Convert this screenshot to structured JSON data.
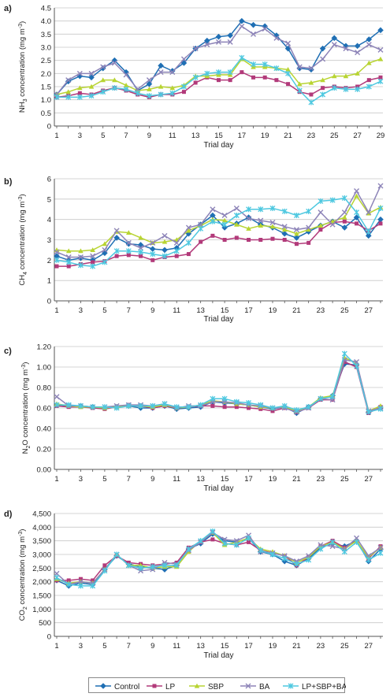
{
  "series_meta": [
    {
      "name": "Control",
      "color": "#1f6fb4",
      "marker": "diamond"
    },
    {
      "name": "LP",
      "color": "#b23a7a",
      "marker": "square"
    },
    {
      "name": "SBP",
      "color": "#b8d432",
      "marker": "triangle"
    },
    {
      "name": "BA",
      "color": "#8d84b8",
      "marker": "x"
    },
    {
      "name": "LP+SBP+BA",
      "color": "#4ec8e0",
      "marker": "star"
    }
  ],
  "chart_data": [
    {
      "panel_label": "a)",
      "type": "line",
      "ylabel_main": "NH",
      "ylabel_sub": "3",
      "ylabel_rest": " concentration (mg m",
      "ylabel_sup": "-3",
      "ylabel_end": ")",
      "xlabel": "Trial day",
      "xlim": [
        1,
        29
      ],
      "xticks": [
        1,
        3,
        5,
        7,
        9,
        11,
        13,
        15,
        17,
        19,
        21,
        23,
        25,
        27,
        29
      ],
      "ylim": [
        0,
        4.5
      ],
      "yticks": [
        "0",
        "0.5",
        "1.0",
        "1.5",
        "2.0",
        "2.5",
        "3.0",
        "3.5",
        "4.0",
        "4.5"
      ],
      "x": [
        1,
        2,
        3,
        4,
        5,
        6,
        7,
        8,
        9,
        10,
        11,
        12,
        13,
        14,
        15,
        16,
        17,
        18,
        19,
        20,
        21,
        22,
        23,
        24,
        25,
        26,
        27,
        28,
        29
      ],
      "series": [
        {
          "name": "Control",
          "values": [
            1.2,
            1.7,
            1.9,
            1.85,
            2.2,
            2.5,
            2.05,
            1.35,
            1.6,
            2.3,
            2.1,
            2.4,
            2.95,
            3.25,
            3.4,
            3.45,
            4.0,
            3.85,
            3.8,
            3.45,
            2.95,
            2.2,
            2.15,
            2.95,
            3.35,
            3.05,
            3.05,
            3.3,
            3.65
          ]
        },
        {
          "name": "LP",
          "values": [
            1.1,
            1.15,
            1.25,
            1.2,
            1.35,
            1.45,
            1.35,
            1.2,
            1.1,
            1.2,
            1.2,
            1.3,
            1.65,
            1.85,
            1.75,
            1.75,
            2.05,
            1.85,
            1.85,
            1.75,
            1.6,
            1.3,
            1.2,
            1.45,
            1.5,
            1.45,
            1.5,
            1.75,
            1.85
          ]
        },
        {
          "name": "SBP",
          "values": [
            1.2,
            1.3,
            1.45,
            1.5,
            1.75,
            1.75,
            1.55,
            1.35,
            1.4,
            1.5,
            1.45,
            1.55,
            1.9,
            1.9,
            1.95,
            1.95,
            2.55,
            2.25,
            2.25,
            2.2,
            2.15,
            1.6,
            1.65,
            1.75,
            1.9,
            1.9,
            2.0,
            2.4,
            2.55
          ]
        },
        {
          "name": "BA",
          "values": [
            1.2,
            1.75,
            2.0,
            2.0,
            2.25,
            2.4,
            1.95,
            1.4,
            1.75,
            2.05,
            2.05,
            2.55,
            2.95,
            3.1,
            3.2,
            3.2,
            3.8,
            3.5,
            3.7,
            3.35,
            3.15,
            2.25,
            2.2,
            2.55,
            3.1,
            2.95,
            2.8,
            3.1,
            2.9
          ]
        },
        {
          "name": "LP+SBP+BA",
          "values": [
            1.1,
            1.1,
            1.1,
            1.15,
            1.3,
            1.45,
            1.4,
            1.25,
            1.15,
            1.2,
            1.25,
            1.5,
            1.85,
            2.0,
            2.05,
            2.05,
            2.6,
            2.35,
            2.35,
            2.2,
            2.0,
            1.35,
            0.9,
            1.2,
            1.45,
            1.4,
            1.4,
            1.5,
            1.7
          ]
        }
      ]
    },
    {
      "panel_label": "b)",
      "type": "line",
      "ylabel_main": "CH",
      "ylabel_sub": "4",
      "ylabel_rest": " concentration (mg m",
      "ylabel_sup": "-3",
      "ylabel_end": ")",
      "xlabel": "Trial day",
      "xlim": [
        1,
        28
      ],
      "xticks": [
        1,
        3,
        5,
        7,
        9,
        11,
        13,
        15,
        17,
        19,
        21,
        23,
        25,
        27
      ],
      "ylim": [
        0,
        6
      ],
      "yticks": [
        "0",
        "1",
        "2",
        "3",
        "4",
        "5",
        "6"
      ],
      "x": [
        1,
        2,
        3,
        4,
        5,
        6,
        7,
        8,
        9,
        10,
        11,
        12,
        13,
        14,
        15,
        16,
        17,
        18,
        19,
        20,
        21,
        22,
        23,
        24,
        25,
        26,
        27,
        28
      ],
      "series": [
        {
          "name": "Control",
          "values": [
            2.2,
            2.0,
            2.1,
            2.0,
            2.35,
            3.1,
            2.8,
            2.75,
            2.55,
            2.5,
            2.6,
            3.3,
            3.75,
            4.2,
            3.6,
            3.8,
            4.1,
            3.75,
            3.6,
            3.3,
            3.1,
            3.4,
            3.7,
            3.9,
            3.6,
            4.1,
            3.2,
            4.0
          ]
        },
        {
          "name": "LP",
          "values": [
            1.7,
            1.7,
            1.8,
            1.9,
            1.95,
            2.2,
            2.25,
            2.2,
            2.0,
            2.15,
            2.2,
            2.3,
            2.9,
            3.2,
            3.0,
            3.1,
            3.0,
            3.0,
            3.05,
            3.0,
            2.8,
            2.85,
            3.5,
            3.85,
            3.9,
            3.8,
            3.45,
            3.8
          ]
        },
        {
          "name": "SBP",
          "values": [
            2.5,
            2.45,
            2.45,
            2.5,
            2.8,
            3.4,
            3.35,
            3.1,
            2.85,
            2.9,
            3.0,
            3.45,
            3.7,
            4.0,
            3.95,
            3.75,
            3.55,
            3.7,
            3.65,
            3.5,
            3.3,
            3.5,
            3.7,
            3.9,
            4.1,
            5.15,
            4.3,
            4.6
          ]
        },
        {
          "name": "BA",
          "values": [
            2.4,
            2.15,
            2.15,
            2.2,
            2.5,
            3.45,
            2.85,
            2.6,
            2.85,
            3.2,
            2.85,
            3.6,
            3.75,
            4.5,
            4.2,
            4.55,
            4.05,
            3.95,
            3.85,
            3.65,
            3.5,
            3.6,
            4.35,
            3.75,
            4.35,
            5.4,
            4.35,
            5.65
          ]
        },
        {
          "name": "LP+SBP+BA",
          "values": [
            2.0,
            1.9,
            1.75,
            1.7,
            1.9,
            2.45,
            2.45,
            2.4,
            2.3,
            2.2,
            2.45,
            2.85,
            3.55,
            3.9,
            3.75,
            4.2,
            4.5,
            4.5,
            4.55,
            4.4,
            4.2,
            4.4,
            4.9,
            4.95,
            5.05,
            4.35,
            3.4,
            4.55
          ]
        }
      ]
    },
    {
      "panel_label": "c)",
      "type": "line",
      "ylabel_main": "N",
      "ylabel_sub": "2",
      "ylabel_rest": "O concentration (mg m",
      "ylabel_sup": "-3",
      "ylabel_end": ")",
      "xlabel": "Trial day",
      "xlim": [
        1,
        28
      ],
      "xticks": [
        1,
        3,
        5,
        7,
        9,
        11,
        13,
        15,
        17,
        19,
        21,
        23,
        25,
        27
      ],
      "ylim": [
        0,
        1.2
      ],
      "yticks": [
        "0.00",
        "0.20",
        "0.40",
        "0.60",
        "0.80",
        "1.00",
        "1.20"
      ],
      "x": [
        1,
        2,
        3,
        4,
        5,
        6,
        7,
        8,
        9,
        10,
        11,
        12,
        13,
        14,
        15,
        16,
        17,
        18,
        19,
        20,
        21,
        22,
        23,
        24,
        25,
        26,
        27,
        28
      ],
      "series": [
        {
          "name": "Control",
          "values": [
            0.63,
            0.62,
            0.62,
            0.61,
            0.6,
            0.61,
            0.62,
            0.6,
            0.6,
            0.62,
            0.59,
            0.6,
            0.61,
            0.66,
            0.65,
            0.64,
            0.63,
            0.61,
            0.59,
            0.61,
            0.55,
            0.61,
            0.69,
            0.72,
            1.03,
            1.02,
            0.56,
            0.6
          ]
        },
        {
          "name": "LP",
          "values": [
            0.62,
            0.61,
            0.61,
            0.6,
            0.59,
            0.61,
            0.63,
            0.62,
            0.6,
            0.62,
            0.6,
            0.61,
            0.62,
            0.62,
            0.61,
            0.61,
            0.6,
            0.59,
            0.57,
            0.6,
            0.56,
            0.6,
            0.68,
            0.68,
            1.05,
            1.0,
            0.55,
            0.61
          ]
        },
        {
          "name": "SBP",
          "values": [
            0.64,
            0.62,
            0.61,
            0.61,
            0.6,
            0.61,
            0.62,
            0.62,
            0.61,
            0.63,
            0.6,
            0.61,
            0.63,
            0.67,
            0.66,
            0.64,
            0.63,
            0.61,
            0.6,
            0.61,
            0.57,
            0.61,
            0.7,
            0.72,
            1.09,
            1.04,
            0.57,
            0.62
          ]
        },
        {
          "name": "BA",
          "values": [
            0.71,
            0.62,
            0.62,
            0.61,
            0.61,
            0.62,
            0.63,
            0.63,
            0.62,
            0.64,
            0.6,
            0.62,
            0.62,
            0.66,
            0.66,
            0.65,
            0.63,
            0.62,
            0.6,
            0.6,
            0.56,
            0.6,
            0.69,
            0.68,
            1.07,
            1.05,
            0.57,
            0.6
          ]
        },
        {
          "name": "LP+SBP+BA",
          "values": [
            0.63,
            0.63,
            0.62,
            0.61,
            0.61,
            0.6,
            0.62,
            0.62,
            0.62,
            0.64,
            0.61,
            0.61,
            0.63,
            0.69,
            0.69,
            0.66,
            0.65,
            0.63,
            0.6,
            0.62,
            0.58,
            0.61,
            0.69,
            0.71,
            1.13,
            1.01,
            0.56,
            0.59
          ]
        }
      ]
    },
    {
      "panel_label": "d)",
      "type": "line",
      "ylabel_main": "CO",
      "ylabel_sub": "2",
      "ylabel_rest": " concentration (mg m",
      "ylabel_sup": "-3",
      "ylabel_end": ")",
      "xlabel": "Trial day",
      "xlim": [
        1,
        28
      ],
      "xticks": [
        1,
        3,
        5,
        7,
        9,
        11,
        13,
        15,
        17,
        19,
        21,
        23,
        25,
        27
      ],
      "ylim": [
        0,
        4500
      ],
      "yticks": [
        "0",
        "500",
        "1,000",
        "1,500",
        "2,000",
        "2,500",
        "3,000",
        "3,500",
        "4,000",
        "4,500"
      ],
      "x": [
        1,
        2,
        3,
        4,
        5,
        6,
        7,
        8,
        9,
        10,
        11,
        12,
        13,
        14,
        15,
        16,
        17,
        18,
        19,
        20,
        21,
        22,
        23,
        24,
        25,
        26,
        27,
        28
      ],
      "series": [
        {
          "name": "Control",
          "values": [
            2050,
            1850,
            1950,
            1900,
            2450,
            2950,
            2650,
            2550,
            2500,
            2450,
            2600,
            3200,
            3400,
            3750,
            3500,
            3450,
            3600,
            3100,
            3000,
            2750,
            2600,
            2850,
            3250,
            3400,
            3300,
            3500,
            2750,
            3200
          ]
        },
        {
          "name": "LP",
          "values": [
            2050,
            2050,
            2100,
            2050,
            2600,
            2950,
            2700,
            2650,
            2600,
            2650,
            2700,
            3250,
            3450,
            3550,
            3400,
            3350,
            3450,
            3150,
            3050,
            2950,
            2600,
            2900,
            3300,
            3500,
            3250,
            3500,
            2850,
            3300
          ]
        },
        {
          "name": "SBP",
          "values": [
            2100,
            1950,
            2000,
            1950,
            2450,
            3000,
            2600,
            2600,
            2500,
            2550,
            2550,
            3100,
            3500,
            3800,
            3350,
            3450,
            3600,
            3200,
            3100,
            2950,
            2700,
            2900,
            3300,
            3450,
            3200,
            3500,
            2900,
            3250
          ]
        },
        {
          "name": "BA",
          "values": [
            2300,
            1900,
            2000,
            1950,
            2450,
            3000,
            2600,
            2400,
            2450,
            2700,
            2650,
            3150,
            3450,
            3800,
            3550,
            3500,
            3700,
            3100,
            3050,
            2950,
            2750,
            2950,
            3350,
            3300,
            3200,
            3600,
            2950,
            3250
          ]
        },
        {
          "name": "LP+SBP+BA",
          "values": [
            2150,
            1900,
            1850,
            1850,
            2400,
            3000,
            2600,
            2500,
            2550,
            2600,
            2600,
            3200,
            3500,
            3850,
            3400,
            3350,
            3600,
            3150,
            3000,
            2850,
            2650,
            2800,
            3200,
            3450,
            3100,
            3450,
            2800,
            3050
          ]
        }
      ]
    }
  ]
}
